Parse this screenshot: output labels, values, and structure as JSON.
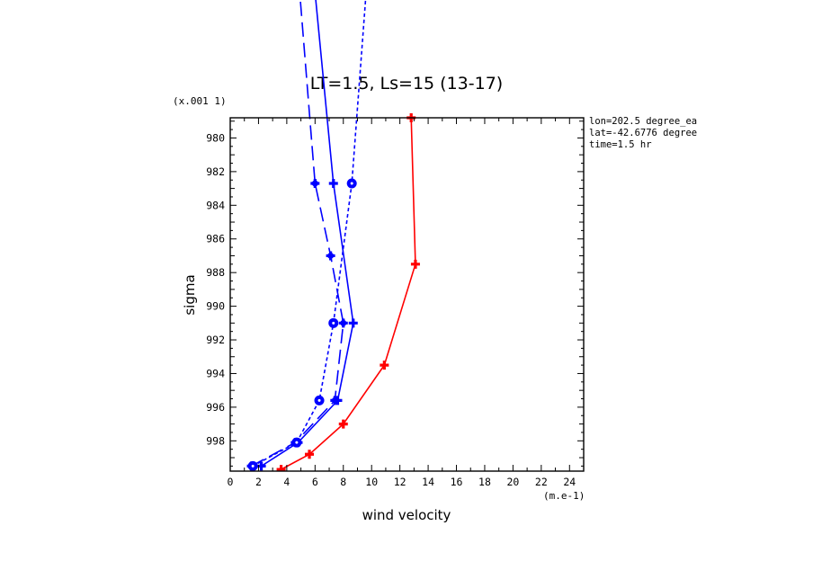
{
  "chart_data": {
    "type": "line",
    "title": "LT=1.5, Ls=15 (13-17)",
    "xlabel": "wind velocity",
    "ylabel": "sigma",
    "x_units": "(m.e-1)",
    "y_units": "(x.001 1)",
    "xlim": [
      0,
      25
    ],
    "ylim": [
      999.8,
      978.8
    ],
    "x_ticks": [
      0,
      2,
      4,
      6,
      8,
      10,
      12,
      14,
      16,
      18,
      20,
      22,
      24
    ],
    "x_tick_labels": [
      "0",
      "2",
      "4",
      "6",
      "8",
      "10",
      "12",
      "14",
      "16",
      "18",
      "20",
      "22",
      "24"
    ],
    "y_ticks": [
      980,
      982,
      984,
      986,
      988,
      990,
      992,
      994,
      996,
      998
    ],
    "y_tick_labels": [
      "980",
      "982",
      "984",
      "986",
      "988",
      "990",
      "992",
      "994",
      "996",
      "998"
    ],
    "annotations": [
      "lon=202.5 degree_ea",
      "lat=-42.6776 degree",
      "time=1.5 hr"
    ],
    "grid": false,
    "series": [
      {
        "color": "#ff0000",
        "dash": "solid",
        "marker": "plus",
        "points": [
          [
            12.8,
            978.8
          ],
          [
            13.1,
            987.5
          ],
          [
            10.9,
            993.5
          ],
          [
            8.0,
            997.0
          ],
          [
            5.6,
            998.8
          ],
          [
            3.6,
            999.7
          ]
        ]
      },
      {
        "color": "#0000ff",
        "dash": "solid",
        "marker": "plus",
        "points": [
          [
            5.5,
            967.0
          ],
          [
            7.3,
            982.7
          ],
          [
            8.7,
            991.0
          ],
          [
            7.6,
            995.6
          ],
          [
            4.8,
            998.1
          ],
          [
            2.2,
            999.5
          ]
        ]
      },
      {
        "color": "#0000ff",
        "dash": "long",
        "marker": "circle-plus",
        "points": [
          [
            4.5,
            967.0
          ],
          [
            6.0,
            982.7
          ],
          [
            7.1,
            987.0
          ],
          [
            8.0,
            991.0
          ],
          [
            7.4,
            995.6
          ],
          [
            4.6,
            998.1
          ],
          [
            1.5,
            999.5
          ]
        ]
      },
      {
        "color": "#0000ff",
        "dash": "short",
        "marker": "circle",
        "points": [
          [
            10.0,
            967.0
          ],
          [
            8.6,
            982.7
          ],
          [
            7.3,
            991.0
          ],
          [
            6.3,
            995.6
          ],
          [
            4.7,
            998.1
          ],
          [
            1.6,
            999.5
          ]
        ]
      }
    ]
  }
}
